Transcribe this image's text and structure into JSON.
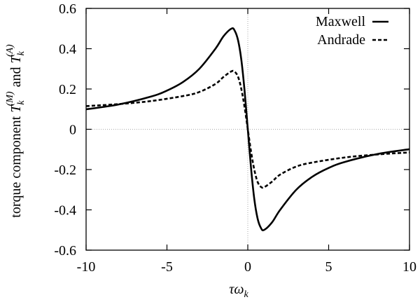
{
  "chart_data": {
    "type": "line",
    "title": "",
    "xlabel": "τω_k",
    "xlabel_parts": {
      "main": "τω",
      "sub": "k"
    },
    "ylabel": "torque component T_k^(M) and T_k^(A)",
    "ylabel_parts": {
      "prefix": "torque component",
      "var1": "T",
      "sub1": "k",
      "sup1": "(M)",
      "and": "and",
      "var2": "T",
      "sub2": "k",
      "sup2": "(A)"
    },
    "xlim": [
      -10,
      10
    ],
    "ylim": [
      -0.6,
      0.6
    ],
    "xticks": [
      -10,
      -5,
      0,
      5,
      10
    ],
    "xtick_labels": [
      "-10",
      "-5",
      "0",
      "5",
      "10"
    ],
    "yticks": [
      -0.6,
      -0.4,
      -0.2,
      0,
      0.2,
      0.4,
      0.6
    ],
    "ytick_labels": [
      "-0.6",
      "-0.4",
      "-0.2",
      "0",
      "0.2",
      "0.4",
      "0.6"
    ],
    "zero_lines": true,
    "legend": {
      "placement": "top-right"
    },
    "series": [
      {
        "name": "Maxwell",
        "style": "solid",
        "x": [
          -10,
          -8,
          -6,
          -5,
          -4,
          -3,
          -2,
          -1.5,
          -1,
          -0.8,
          -0.6,
          -0.4,
          -0.2,
          0,
          0.2,
          0.4,
          0.6,
          0.8,
          1,
          1.5,
          2,
          3,
          4,
          5,
          6,
          8,
          10
        ],
        "y": [
          0.099,
          0.123,
          0.162,
          0.192,
          0.235,
          0.3,
          0.4,
          0.462,
          0.5,
          0.488,
          0.441,
          0.345,
          0.192,
          0,
          -0.192,
          -0.345,
          -0.441,
          -0.488,
          -0.5,
          -0.462,
          -0.4,
          -0.3,
          -0.235,
          -0.192,
          -0.162,
          -0.123,
          -0.099
        ]
      },
      {
        "name": "Andrade",
        "style": "dashed",
        "x": [
          -10,
          -8,
          -6,
          -4,
          -3,
          -2,
          -1.5,
          -1,
          -0.8,
          -0.6,
          -0.4,
          -0.2,
          0,
          0.2,
          0.4,
          0.6,
          0.8,
          1,
          1.5,
          2,
          3,
          4,
          6,
          8,
          10
        ],
        "y": [
          0.115,
          0.125,
          0.14,
          0.165,
          0.185,
          0.225,
          0.26,
          0.288,
          0.285,
          0.26,
          0.2,
          0.11,
          0,
          -0.11,
          -0.2,
          -0.26,
          -0.285,
          -0.288,
          -0.26,
          -0.225,
          -0.185,
          -0.165,
          -0.14,
          -0.125,
          -0.115
        ]
      }
    ]
  }
}
